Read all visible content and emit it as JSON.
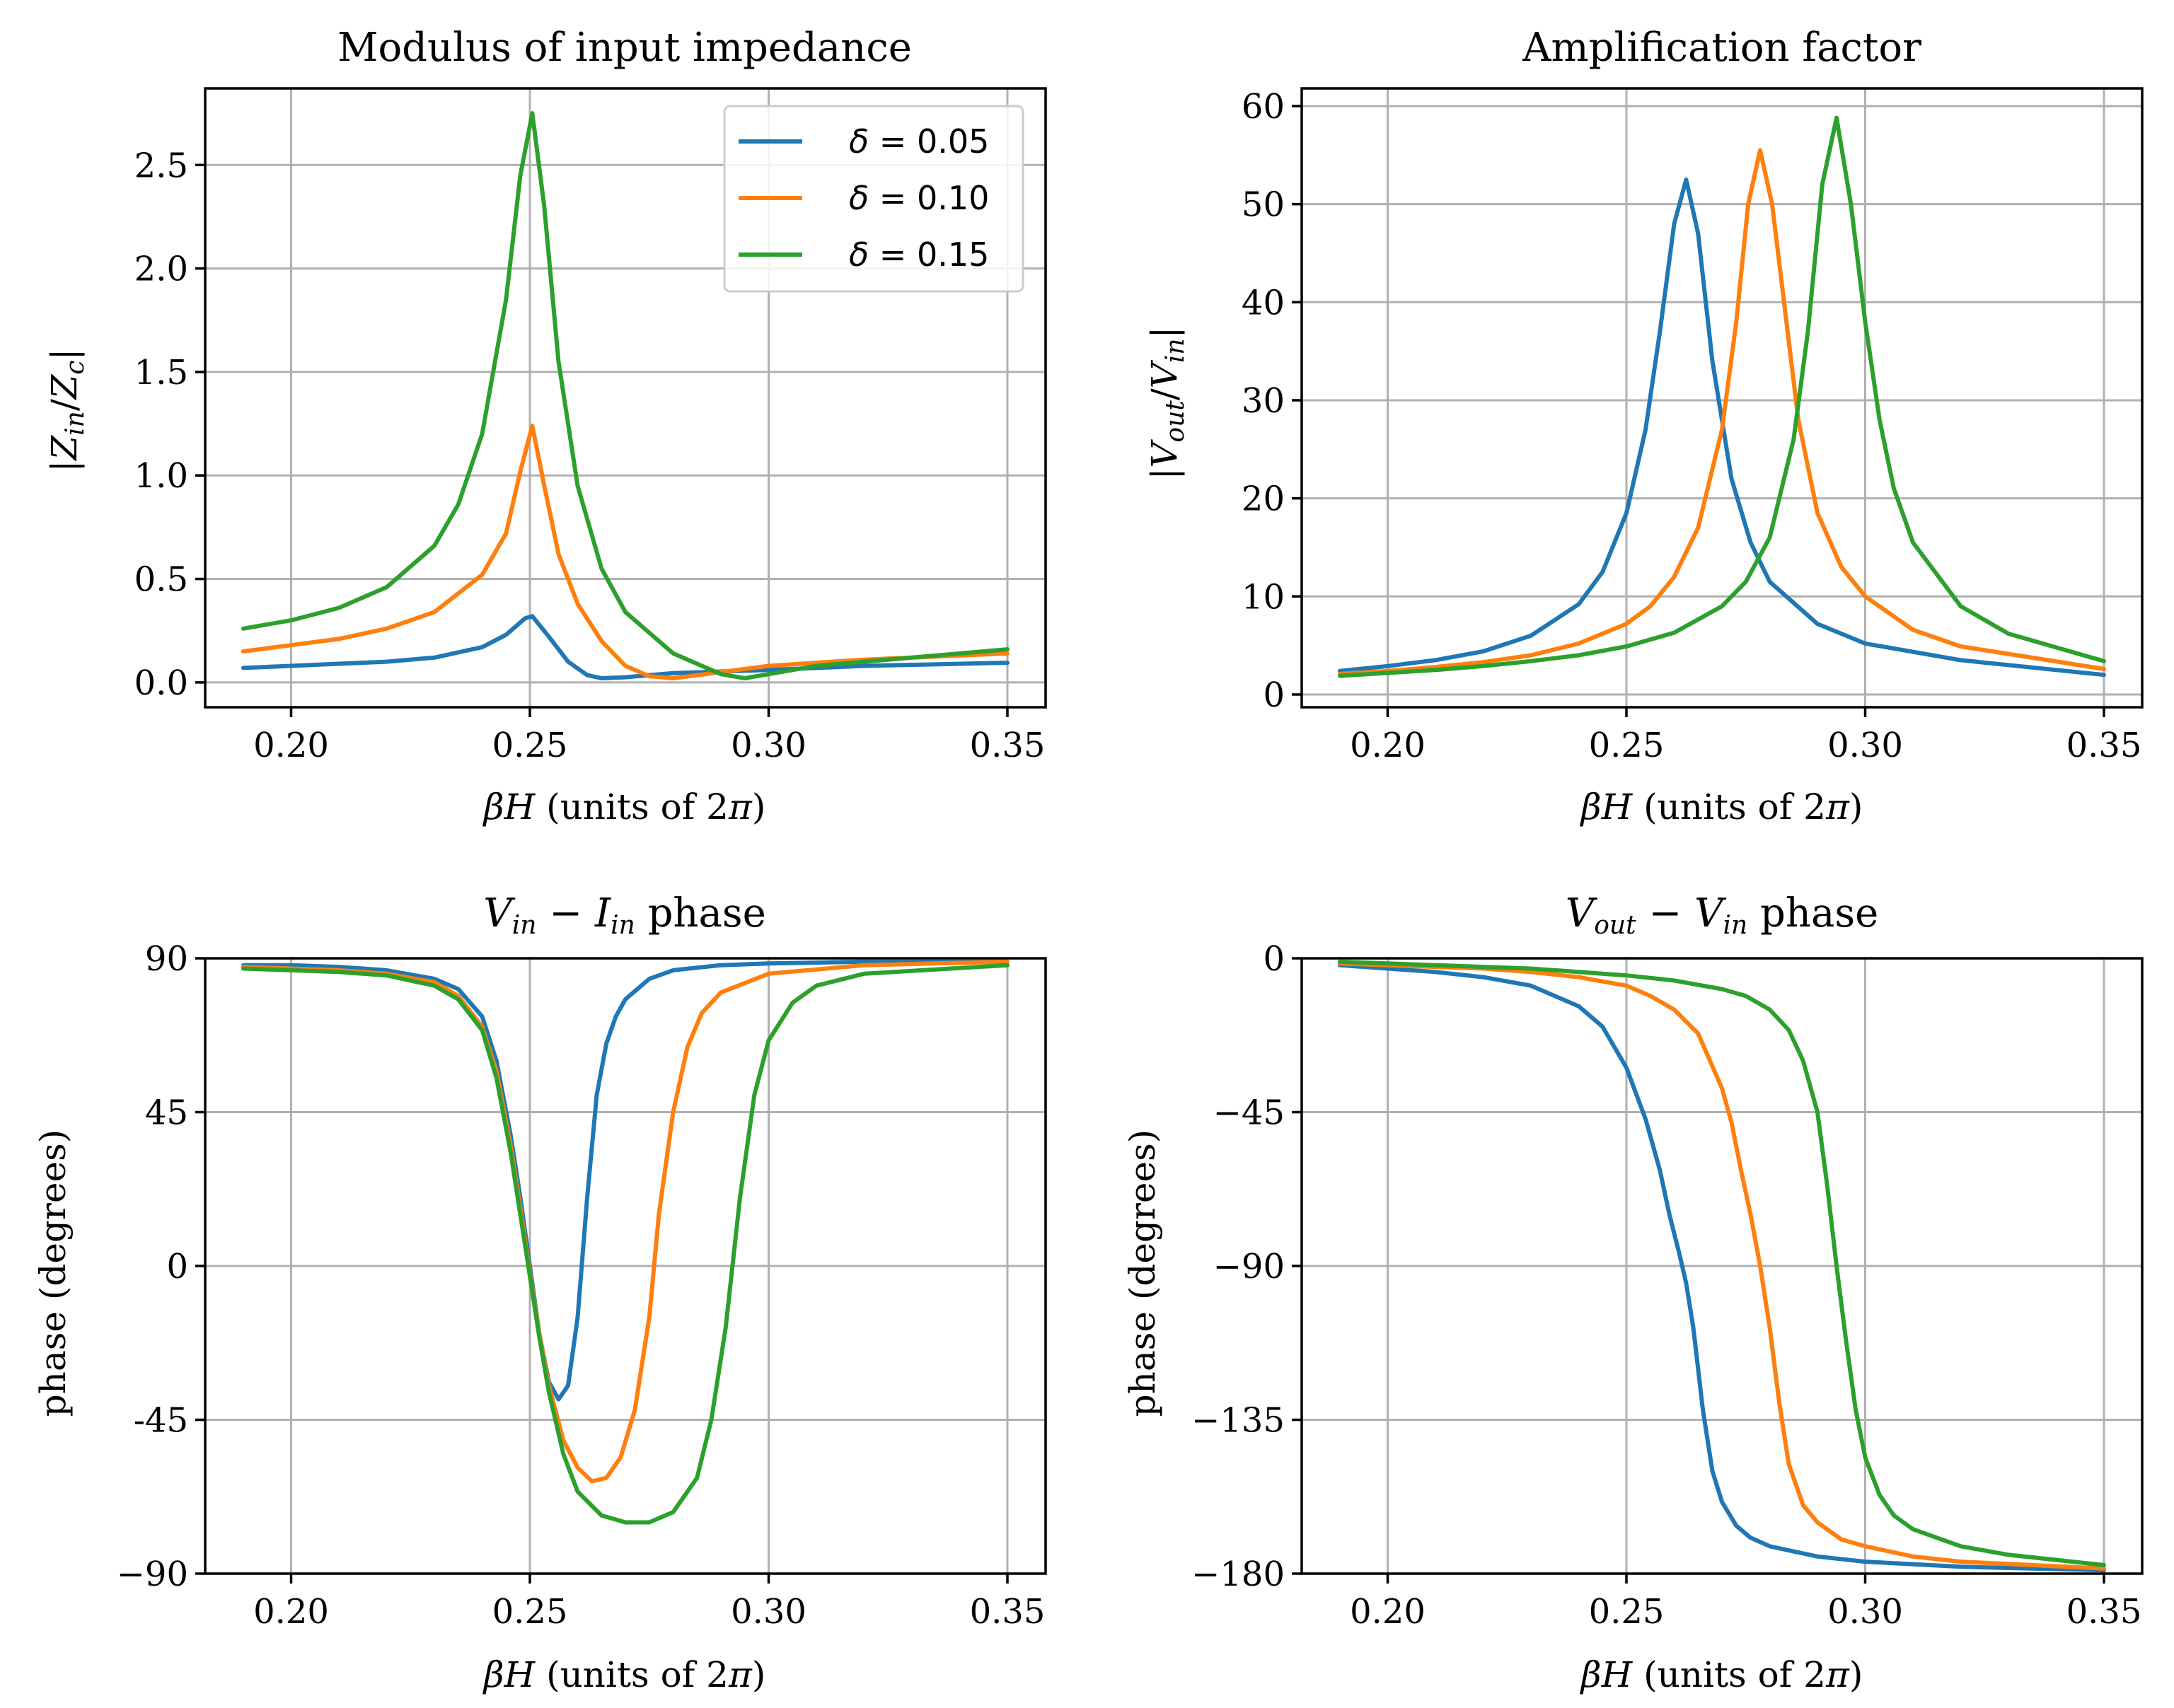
{
  "colors": {
    "series": [
      "#1f77b4",
      "#ff7f0e",
      "#2ca02c"
    ],
    "grid": "#b0b0b0",
    "legend_frame": "#cccccc"
  },
  "legend": {
    "items": [
      {
        "name": "δ = 0.05",
        "delta": "0.05"
      },
      {
        "name": "δ = 0.10",
        "delta": "0.10"
      },
      {
        "name": "δ = 0.15",
        "delta": "0.15"
      }
    ]
  },
  "chart_data": [
    {
      "id": "impedance",
      "type": "line",
      "title": "Modulus of input impedance",
      "xlabel": "βH (units of 2π)",
      "ylabel": "|Z_in/Z_c|",
      "xlim": [
        0.182,
        0.358
      ],
      "ylim": [
        -0.12,
        2.87
      ],
      "xticks": [
        0.2,
        0.25,
        0.3,
        0.35
      ],
      "xtick_labels": [
        "0.20",
        "0.25",
        "0.30",
        "0.35"
      ],
      "yticks": [
        0.0,
        0.5,
        1.0,
        1.5,
        2.0,
        2.5
      ],
      "ytick_labels": [
        "0.0",
        "0.5",
        "1.0",
        "1.5",
        "2.0",
        "2.5"
      ],
      "grid": true,
      "legend_position": "upper-right",
      "series": [
        {
          "name": "δ = 0.05",
          "x": [
            0.19,
            0.2,
            0.21,
            0.22,
            0.23,
            0.24,
            0.245,
            0.249,
            0.2505,
            0.254,
            0.258,
            0.262,
            0.265,
            0.27,
            0.28,
            0.3,
            0.32,
            0.35
          ],
          "values": [
            0.07,
            0.08,
            0.09,
            0.1,
            0.12,
            0.17,
            0.23,
            0.31,
            0.32,
            0.22,
            0.1,
            0.035,
            0.02,
            0.025,
            0.045,
            0.06,
            0.08,
            0.095
          ]
        },
        {
          "name": "δ = 0.10",
          "x": [
            0.19,
            0.2,
            0.21,
            0.22,
            0.23,
            0.24,
            0.245,
            0.248,
            0.2505,
            0.253,
            0.256,
            0.26,
            0.265,
            0.27,
            0.275,
            0.28,
            0.29,
            0.3,
            0.32,
            0.35
          ],
          "values": [
            0.15,
            0.18,
            0.21,
            0.26,
            0.34,
            0.52,
            0.72,
            1.02,
            1.24,
            0.95,
            0.62,
            0.38,
            0.2,
            0.08,
            0.03,
            0.02,
            0.05,
            0.08,
            0.11,
            0.14
          ]
        },
        {
          "name": "δ = 0.15",
          "x": [
            0.19,
            0.2,
            0.21,
            0.22,
            0.23,
            0.235,
            0.24,
            0.245,
            0.248,
            0.2505,
            0.253,
            0.256,
            0.26,
            0.265,
            0.27,
            0.28,
            0.29,
            0.295,
            0.3,
            0.31,
            0.32,
            0.35
          ],
          "values": [
            0.26,
            0.3,
            0.36,
            0.46,
            0.66,
            0.86,
            1.2,
            1.85,
            2.45,
            2.75,
            2.3,
            1.55,
            0.95,
            0.55,
            0.34,
            0.14,
            0.04,
            0.02,
            0.04,
            0.08,
            0.1,
            0.16
          ]
        }
      ]
    },
    {
      "id": "amplification",
      "type": "line",
      "title": "Amplification factor",
      "xlabel": "βH (units of 2π)",
      "ylabel": "|V_out/V_in|",
      "xlim": [
        0.182,
        0.358
      ],
      "ylim": [
        -1.3,
        61.8
      ],
      "xticks": [
        0.2,
        0.25,
        0.3,
        0.35
      ],
      "xtick_labels": [
        "0.20",
        "0.25",
        "0.30",
        "0.35"
      ],
      "yticks": [
        0,
        10,
        20,
        30,
        40,
        50,
        60
      ],
      "ytick_labels": [
        "0",
        "10",
        "20",
        "30",
        "40",
        "50",
        "60"
      ],
      "grid": true,
      "series": [
        {
          "name": "δ = 0.05",
          "x": [
            0.19,
            0.2,
            0.21,
            0.22,
            0.23,
            0.24,
            0.245,
            0.25,
            0.254,
            0.257,
            0.26,
            0.2625,
            0.265,
            0.268,
            0.272,
            0.276,
            0.28,
            0.29,
            0.3,
            0.32,
            0.35
          ],
          "values": [
            2.4,
            2.9,
            3.5,
            4.4,
            6.0,
            9.2,
            12.5,
            18.5,
            27.0,
            37.0,
            48.0,
            52.5,
            47.0,
            34.0,
            22.0,
            15.5,
            11.5,
            7.2,
            5.2,
            3.5,
            2.0
          ]
        },
        {
          "name": "δ = 0.10",
          "x": [
            0.19,
            0.2,
            0.21,
            0.22,
            0.23,
            0.24,
            0.25,
            0.255,
            0.26,
            0.265,
            0.27,
            0.273,
            0.2755,
            0.278,
            0.2805,
            0.283,
            0.286,
            0.29,
            0.295,
            0.3,
            0.31,
            0.32,
            0.35
          ],
          "values": [
            2.1,
            2.4,
            2.8,
            3.3,
            4.0,
            5.2,
            7.2,
            9.0,
            12.0,
            17.0,
            27.0,
            38.0,
            50.0,
            55.5,
            50.0,
            40.0,
            28.0,
            18.5,
            13.0,
            10.0,
            6.6,
            4.9,
            2.6
          ]
        },
        {
          "name": "δ = 0.15",
          "x": [
            0.19,
            0.2,
            0.21,
            0.22,
            0.23,
            0.24,
            0.25,
            0.26,
            0.27,
            0.275,
            0.28,
            0.285,
            0.288,
            0.291,
            0.294,
            0.297,
            0.3,
            0.303,
            0.306,
            0.31,
            0.32,
            0.33,
            0.35
          ],
          "values": [
            1.9,
            2.2,
            2.5,
            2.9,
            3.4,
            4.0,
            4.9,
            6.3,
            9.0,
            11.5,
            16.0,
            26.0,
            37.0,
            52.0,
            58.8,
            50.0,
            38.0,
            28.0,
            21.0,
            15.5,
            9.0,
            6.2,
            3.4
          ]
        }
      ]
    },
    {
      "id": "vin-iin-phase",
      "type": "line",
      "title": "V_in − I_in phase",
      "xlabel": "βH (units of 2π)",
      "ylabel": "phase (degrees)",
      "xlim": [
        0.182,
        0.358
      ],
      "ylim": [
        -90,
        90
      ],
      "xticks": [
        0.2,
        0.25,
        0.3,
        0.35
      ],
      "xtick_labels": [
        "0.20",
        "0.25",
        "0.30",
        "0.35"
      ],
      "yticks": [
        -90,
        -45,
        0,
        45,
        90
      ],
      "ytick_labels": [
        "−90",
        "-45",
        "0",
        "45",
        "90"
      ],
      "grid": true,
      "series": [
        {
          "name": "δ = 0.05",
          "x": [
            0.19,
            0.2,
            0.21,
            0.22,
            0.23,
            0.235,
            0.24,
            0.243,
            0.246,
            0.248,
            0.25,
            0.252,
            0.254,
            0.256,
            0.258,
            0.26,
            0.262,
            0.264,
            0.266,
            0.268,
            0.27,
            0.275,
            0.28,
            0.29,
            0.3,
            0.32,
            0.35
          ],
          "values": [
            88,
            88,
            87.5,
            86.5,
            84,
            81,
            73,
            60,
            38,
            20,
            0,
            -20,
            -34,
            -39,
            -35,
            -15,
            20,
            50,
            65,
            73,
            78,
            84,
            86.5,
            88,
            88.5,
            89,
            89
          ]
        },
        {
          "name": "δ = 0.10",
          "x": [
            0.19,
            0.2,
            0.21,
            0.22,
            0.23,
            0.235,
            0.24,
            0.243,
            0.246,
            0.248,
            0.25,
            0.252,
            0.254,
            0.257,
            0.26,
            0.263,
            0.266,
            0.269,
            0.272,
            0.275,
            0.277,
            0.28,
            0.283,
            0.286,
            0.29,
            0.3,
            0.32,
            0.35
          ],
          "values": [
            87.5,
            87,
            86.5,
            85.5,
            83,
            79,
            70,
            57,
            35,
            17,
            -2,
            -20,
            -35,
            -51,
            -59,
            -63,
            -62,
            -56,
            -42,
            -15,
            15,
            45,
            64,
            74,
            80,
            85.5,
            88,
            89
          ]
        },
        {
          "name": "δ = 0.15",
          "x": [
            0.19,
            0.2,
            0.21,
            0.22,
            0.23,
            0.235,
            0.24,
            0.243,
            0.246,
            0.248,
            0.25,
            0.252,
            0.254,
            0.257,
            0.26,
            0.265,
            0.27,
            0.275,
            0.28,
            0.285,
            0.288,
            0.291,
            0.294,
            0.297,
            0.3,
            0.305,
            0.31,
            0.32,
            0.35
          ],
          "values": [
            87,
            86.5,
            86,
            85,
            82,
            78,
            69,
            55,
            33,
            15,
            -3,
            -21,
            -37,
            -55,
            -66,
            -73,
            -75,
            -75,
            -72,
            -62,
            -45,
            -18,
            20,
            50,
            66,
            77,
            82,
            85.5,
            88
          ]
        }
      ]
    },
    {
      "id": "vout-vin-phase",
      "type": "line",
      "title": "V_out − V_in phase",
      "xlabel": "βH (units of 2π)",
      "ylabel": "phase (degrees)",
      "xlim": [
        0.182,
        0.358
      ],
      "ylim": [
        -180,
        0
      ],
      "xticks": [
        0.2,
        0.25,
        0.3,
        0.35
      ],
      "xtick_labels": [
        "0.20",
        "0.25",
        "0.30",
        "0.35"
      ],
      "yticks": [
        -180,
        -135,
        -90,
        -45,
        0
      ],
      "ytick_labels": [
        "−180",
        "−135",
        "−90",
        "−45",
        "0"
      ],
      "grid": true,
      "series": [
        {
          "name": "δ = 0.05",
          "x": [
            0.19,
            0.2,
            0.21,
            0.22,
            0.23,
            0.24,
            0.245,
            0.25,
            0.254,
            0.257,
            0.259,
            0.261,
            0.2625,
            0.264,
            0.266,
            0.268,
            0.27,
            0.273,
            0.276,
            0.28,
            0.29,
            0.3,
            0.32,
            0.35
          ],
          "values": [
            -2,
            -3,
            -4,
            -5.5,
            -8,
            -14,
            -20,
            -32,
            -47,
            -62,
            -75,
            -86,
            -95,
            -108,
            -132,
            -150,
            -159,
            -166,
            -169.5,
            -172,
            -175,
            -176.5,
            -178,
            -179
          ]
        },
        {
          "name": "δ = 0.10",
          "x": [
            0.19,
            0.2,
            0.21,
            0.22,
            0.23,
            0.24,
            0.25,
            0.255,
            0.26,
            0.265,
            0.27,
            0.272,
            0.274,
            0.276,
            0.278,
            0.28,
            0.282,
            0.284,
            0.287,
            0.29,
            0.295,
            0.3,
            0.31,
            0.32,
            0.35
          ],
          "values": [
            -1.5,
            -2,
            -2.5,
            -3,
            -4,
            -5.5,
            -8,
            -11,
            -15,
            -22,
            -38,
            -48,
            -62,
            -75,
            -90,
            -108,
            -130,
            -148,
            -160,
            -165,
            -170,
            -172,
            -175,
            -176.5,
            -178.5
          ]
        },
        {
          "name": "δ = 0.15",
          "x": [
            0.19,
            0.2,
            0.21,
            0.22,
            0.23,
            0.24,
            0.25,
            0.26,
            0.27,
            0.275,
            0.28,
            0.284,
            0.287,
            0.29,
            0.292,
            0.294,
            0.296,
            0.298,
            0.3,
            0.303,
            0.306,
            0.31,
            0.32,
            0.33,
            0.35
          ],
          "values": [
            -1,
            -1.5,
            -2,
            -2.5,
            -3,
            -4,
            -5,
            -6.5,
            -9,
            -11,
            -15,
            -21,
            -30,
            -45,
            -66,
            -90,
            -112,
            -132,
            -146,
            -157,
            -163,
            -167,
            -172,
            -174.5,
            -177.5
          ]
        }
      ]
    }
  ]
}
